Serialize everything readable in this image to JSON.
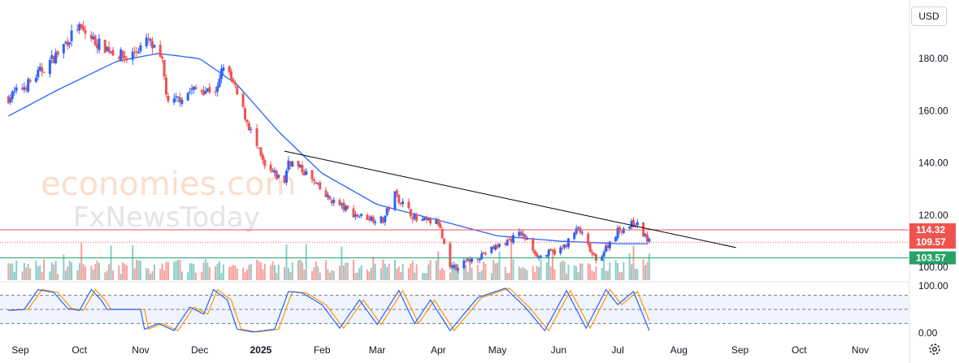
{
  "currency": "USD",
  "watermark": {
    "line1": "economies.com",
    "line2": "FxNewsToday"
  },
  "colors": {
    "up": "#2962ff",
    "down": "#ef5350",
    "ma": "#2962ff",
    "trendline": "#000000",
    "resistance": "#ef5350",
    "support": "#26a269",
    "current": "#ef5350",
    "stoch_k": "#2962ff",
    "stoch_d": "#ff9800",
    "vol_up": "#26a69a",
    "vol_down": "#ef5350"
  },
  "price_axis": {
    "ticks": [
      "180.00",
      "160.00",
      "140.00",
      "120.00",
      "100.00"
    ],
    "tick_values": [
      180,
      160,
      140,
      120,
      100
    ],
    "ylim": [
      95,
      200
    ]
  },
  "stoch_axis": {
    "ticks": [
      "100.00",
      "0.00"
    ],
    "tick_values": [
      100,
      0
    ],
    "levels": [
      80,
      50,
      20
    ]
  },
  "months": [
    "Sep",
    "Oct",
    "Nov",
    "Dec",
    "2025",
    "Feb",
    "Mar",
    "Apr",
    "May",
    "Jun",
    "Jul",
    "Aug",
    "Sep",
    "Oct",
    "Nov"
  ],
  "levels": [
    {
      "label": "114.32",
      "value": 114.32,
      "kind": "resistance"
    },
    {
      "label": "109.57",
      "value": 109.57,
      "kind": "current"
    },
    {
      "label": "103.57",
      "value": 103.57,
      "kind": "support"
    }
  ],
  "chart_data": {
    "type": "candlestick",
    "x_start": "2024-08-26",
    "trendline": {
      "from": [
        "2025-01-13",
        144.5
      ],
      "to": [
        "2025-08-30",
        107.5
      ]
    },
    "series": [
      {
        "name": "price",
        "anchors": [
          [
            "2024-08-26",
            165
          ],
          [
            "2024-09-06",
            171
          ],
          [
            "2024-09-20",
            182
          ],
          [
            "2024-09-30",
            192
          ],
          [
            "2024-10-10",
            186
          ],
          [
            "2024-10-25",
            180
          ],
          [
            "2024-11-05",
            187
          ],
          [
            "2024-11-12",
            178
          ],
          [
            "2024-11-15",
            162
          ],
          [
            "2024-11-27",
            168
          ],
          [
            "2024-12-10",
            168
          ],
          [
            "2024-12-13",
            178
          ],
          [
            "2024-12-18",
            170
          ],
          [
            "2024-12-27",
            152
          ],
          [
            "2025-01-03",
            138
          ],
          [
            "2025-01-13",
            133
          ],
          [
            "2025-01-15",
            141
          ],
          [
            "2025-01-24",
            136
          ],
          [
            "2025-02-03",
            127
          ],
          [
            "2025-02-18",
            120
          ],
          [
            "2025-03-04",
            118
          ],
          [
            "2025-03-10",
            128
          ],
          [
            "2025-03-21",
            118
          ],
          [
            "2025-04-01",
            117
          ],
          [
            "2025-04-07",
            99
          ],
          [
            "2025-04-21",
            104
          ],
          [
            "2025-05-06",
            110
          ],
          [
            "2025-05-13",
            113
          ],
          [
            "2025-05-22",
            104
          ],
          [
            "2025-06-03",
            107
          ],
          [
            "2025-06-11",
            115
          ],
          [
            "2025-06-20",
            102
          ],
          [
            "2025-07-01",
            114
          ],
          [
            "2025-07-10",
            117
          ],
          [
            "2025-07-17",
            109.57
          ]
        ]
      },
      {
        "name": "moving-average",
        "anchors": [
          [
            "2024-08-26",
            158
          ],
          [
            "2024-09-20",
            168
          ],
          [
            "2024-10-20",
            179
          ],
          [
            "2024-11-10",
            182
          ],
          [
            "2024-12-01",
            180
          ],
          [
            "2024-12-20",
            170
          ],
          [
            "2025-01-10",
            152
          ],
          [
            "2025-02-01",
            136
          ],
          [
            "2025-03-01",
            124
          ],
          [
            "2025-04-01",
            118
          ],
          [
            "2025-05-01",
            112
          ],
          [
            "2025-06-01",
            110
          ],
          [
            "2025-07-01",
            109
          ],
          [
            "2025-07-17",
            109
          ]
        ]
      },
      {
        "name": "stochastic",
        "anchors": [
          [
            "2024-08-26",
            48
          ],
          [
            "2024-09-03",
            50
          ],
          [
            "2024-09-10",
            92
          ],
          [
            "2024-09-18",
            86
          ],
          [
            "2024-09-25",
            52
          ],
          [
            "2024-10-01",
            48
          ],
          [
            "2024-10-07",
            92
          ],
          [
            "2024-10-12",
            70
          ],
          [
            "2024-10-15",
            50
          ],
          [
            "2024-11-01",
            50
          ],
          [
            "2024-11-03",
            8
          ],
          [
            "2024-11-10",
            20
          ],
          [
            "2024-11-18",
            5
          ],
          [
            "2024-11-26",
            55
          ],
          [
            "2024-12-03",
            40
          ],
          [
            "2024-12-08",
            92
          ],
          [
            "2024-12-15",
            70
          ],
          [
            "2024-12-20",
            8
          ],
          [
            "2024-12-28",
            2
          ],
          [
            "2025-01-08",
            8
          ],
          [
            "2025-01-15",
            88
          ],
          [
            "2025-01-22",
            85
          ],
          [
            "2025-02-01",
            60
          ],
          [
            "2025-02-10",
            10
          ],
          [
            "2025-02-20",
            70
          ],
          [
            "2025-03-01",
            18
          ],
          [
            "2025-03-12",
            90
          ],
          [
            "2025-03-20",
            20
          ],
          [
            "2025-03-28",
            70
          ],
          [
            "2025-04-07",
            5
          ],
          [
            "2025-04-21",
            75
          ],
          [
            "2025-05-05",
            95
          ],
          [
            "2025-05-15",
            55
          ],
          [
            "2025-05-25",
            5
          ],
          [
            "2025-06-05",
            90
          ],
          [
            "2025-06-15",
            10
          ],
          [
            "2025-06-25",
            92
          ],
          [
            "2025-07-01",
            60
          ],
          [
            "2025-07-09",
            88
          ],
          [
            "2025-07-17",
            5
          ]
        ]
      }
    ],
    "x_range": [
      "2024-08-25",
      "2025-11-28"
    ]
  }
}
